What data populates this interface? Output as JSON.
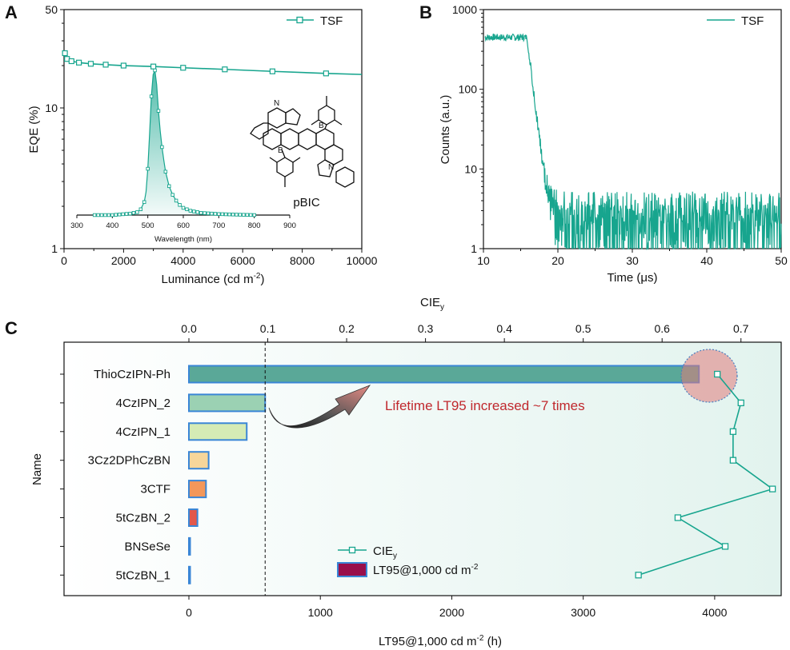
{
  "panels": {
    "A": "A",
    "B": "B",
    "C": "C"
  },
  "chart_data": [
    {
      "id": "A",
      "type": "line",
      "xlabel": "Luminance (cd m",
      "xlabel_sup": "-2",
      "xlabel_end": ")",
      "ylabel": "EQE (%)",
      "xlim": [
        0,
        10000
      ],
      "ylim": [
        1,
        50
      ],
      "yscale": "log",
      "xticks": [
        0,
        2000,
        4000,
        6000,
        8000,
        10000
      ],
      "yticks": [
        1,
        10,
        50
      ],
      "legend": {
        "label": "TSF",
        "position": "top-right"
      },
      "series": [
        {
          "name": "TSF",
          "x": [
            30,
            100,
            250,
            500,
            900,
            1400,
            2000,
            3000,
            4000,
            5400,
            7000,
            8800,
            10000
          ],
          "y": [
            24.5,
            22.3,
            21.5,
            21.0,
            20.6,
            20.3,
            20.0,
            19.7,
            19.3,
            18.8,
            18.2,
            17.6,
            17.3
          ],
          "markers_at": [
            30,
            100,
            250,
            500,
            900,
            1400,
            2000,
            3000,
            4000,
            5400,
            7000,
            8800
          ]
        }
      ],
      "inset": {
        "type": "area",
        "xlabel": "Wavelength (nm)",
        "xlim": [
          300,
          900
        ],
        "xticks": [
          300,
          400,
          500,
          600,
          700,
          800,
          900
        ],
        "peak_nm": 520,
        "fwhm_nm": 30,
        "x": [
          350,
          400,
          450,
          470,
          480,
          490,
          495,
          500,
          505,
          510,
          515,
          520,
          525,
          530,
          535,
          540,
          545,
          550,
          560,
          570,
          580,
          590,
          600,
          620,
          650,
          700,
          750,
          800
        ],
        "y": [
          0.0,
          0.0,
          0.01,
          0.02,
          0.04,
          0.09,
          0.16,
          0.32,
          0.56,
          0.82,
          0.97,
          1.0,
          0.9,
          0.72,
          0.58,
          0.47,
          0.38,
          0.3,
          0.2,
          0.14,
          0.1,
          0.07,
          0.05,
          0.03,
          0.015,
          0.007,
          0.003,
          0.0
        ]
      },
      "molecule_label": "pBIC"
    },
    {
      "id": "B",
      "type": "line",
      "xlabel": "Time (μs)",
      "ylabel": "Counts (a.u.)",
      "xlim": [
        10,
        50
      ],
      "ylim": [
        1,
        1000
      ],
      "yscale": "log",
      "xticks": [
        10,
        20,
        30,
        40,
        50
      ],
      "yticks": [
        1,
        10,
        100,
        1000
      ],
      "legend": {
        "label": "TSF",
        "position": "top-right"
      },
      "series": [
        {
          "name": "TSF",
          "plateau": 450,
          "plateau_end": 15.8,
          "decay_tau": 0.55,
          "noise_floor": 2.5
        }
      ]
    },
    {
      "id": "C",
      "type": "bar",
      "orientation": "horizontal",
      "ylabel": "Name",
      "xlabel": "LT95@1,000 cd m",
      "xlabel_sup": "-2",
      "xlabel_end": " (h)",
      "top_xlabel": "CIE",
      "top_xlabel_sub": "y",
      "xlim": [
        0,
        4500
      ],
      "top_xlim": [
        0.0,
        0.75
      ],
      "xticks": [
        0,
        1000,
        2000,
        3000,
        4000
      ],
      "top_xticks": [
        "0.0",
        "0.1",
        "0.2",
        "0.3",
        "0.4",
        "0.5",
        "0.6",
        "0.7"
      ],
      "categories": [
        "ThioCzIPN-Ph",
        "4CzIPN_2",
        "4CzIPN_1",
        "3Cz2DPhCzBN",
        "3CTF",
        "5tCzBN_2",
        "BNSeSe",
        "5tCzBN_1"
      ],
      "series": [
        {
          "name": "LT95@1,000 cd m-2",
          "values": [
            3880,
            580,
            440,
            150,
            130,
            65,
            8,
            8
          ],
          "colors": [
            "#5aa898",
            "#9bd1b3",
            "#d5ebb5",
            "#f7d69a",
            "#f3975a",
            "#e3584b",
            "#b2b2b2",
            "#b2b2b2"
          ]
        },
        {
          "name": "CIEy",
          "values": [
            0.67,
            0.7,
            0.69,
            0.69,
            0.74,
            0.62,
            0.68,
            0.57
          ]
        }
      ],
      "reference_line_x": 580,
      "annotation": "Lifetime LT95 increased ~7 times",
      "legend": {
        "items": [
          "CIE",
          "LT95@1,000 cd m"
        ],
        "sub": "y",
        "sup": "-2",
        "position": "bottom-center"
      }
    }
  ]
}
